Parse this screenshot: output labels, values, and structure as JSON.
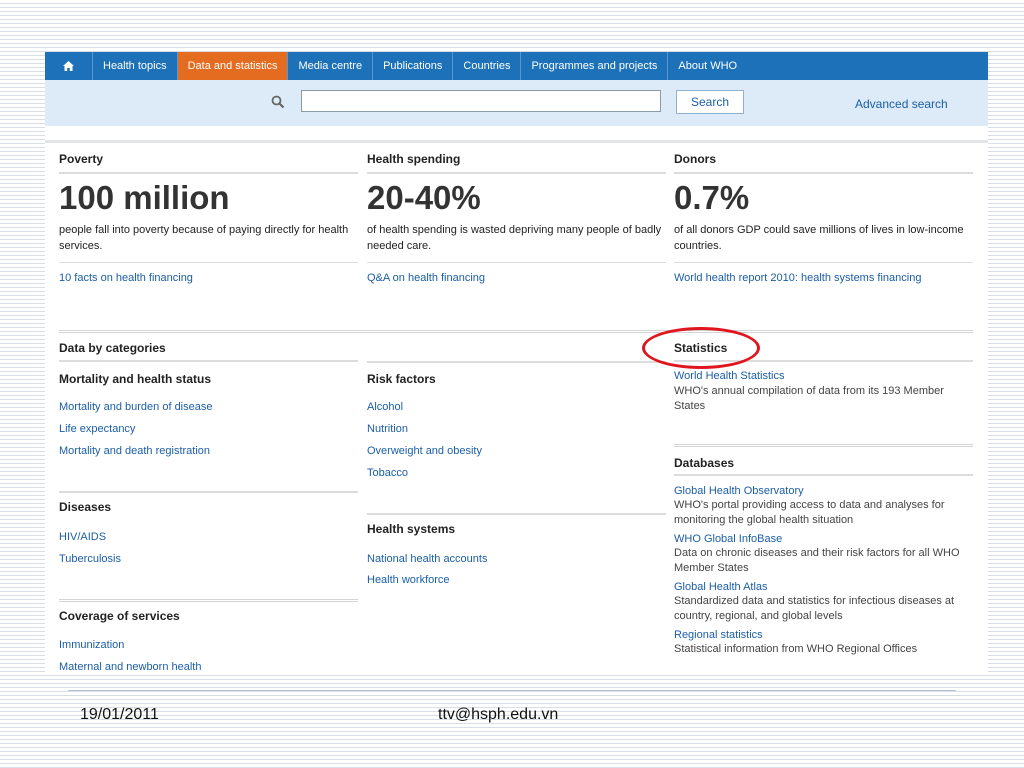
{
  "nav": {
    "home_icon": "home-icon",
    "items": [
      "Health topics",
      "Data and statistics",
      "Media centre",
      "Publications",
      "Countries",
      "Programmes and projects",
      "About WHO"
    ],
    "active_index": 1
  },
  "search": {
    "placeholder": "",
    "button_label": "Search",
    "advanced_label": "Advanced search",
    "icon": "search-icon"
  },
  "facts": [
    {
      "heading": "Poverty",
      "value": "100 million",
      "description": "people fall into poverty because of paying directly for health services.",
      "link": "10 facts on health financing"
    },
    {
      "heading": "Health spending",
      "value": "20-40%",
      "description": "of health spending is wasted depriving many people of badly needed care.",
      "link": "Q&A on health financing"
    },
    {
      "heading": "Donors",
      "value": "0.7%",
      "description": "of all donors GDP could save millions of lives in low-income countries.",
      "link": "World health report 2010: health systems financing"
    }
  ],
  "categories": {
    "heading": "Data by categories",
    "mortality": {
      "heading": "Mortality and health status",
      "links": [
        "Mortality and burden of disease",
        "Life expectancy",
        "Mortality and death registration"
      ]
    },
    "diseases": {
      "heading": "Diseases",
      "links": [
        "HIV/AIDS",
        "Tuberculosis"
      ]
    },
    "coverage": {
      "heading": "Coverage of services",
      "links": [
        "Immunization",
        "Maternal and newborn health"
      ]
    },
    "risk": {
      "heading": "Risk factors",
      "links": [
        "Alcohol",
        "Nutrition",
        "Overweight and obesity",
        "Tobacco"
      ]
    },
    "systems": {
      "heading": "Health systems",
      "links": [
        "National health accounts",
        "Health workforce"
      ]
    }
  },
  "statistics": {
    "heading": "Statistics",
    "title": "World Health Statistics",
    "description": "WHO's annual compilation of data from its 193 Member States"
  },
  "databases": {
    "heading": "Databases",
    "items": [
      {
        "title": "Global Health Observatory",
        "description": "WHO's portal providing access to data and analyses for monitoring the global health situation"
      },
      {
        "title": "WHO Global InfoBase",
        "description": "Data on chronic diseases and their risk factors for all WHO Member States"
      },
      {
        "title": "Global Health Atlas",
        "description": "Standardized data and statistics for infectious diseases at country, regional, and global levels"
      },
      {
        "title": "Regional statistics",
        "description": "Statistical information from WHO Regional Offices"
      }
    ]
  },
  "footer": {
    "date": "19/01/2011",
    "email": "ttv@hsph.edu.vn"
  },
  "colors": {
    "nav_bg": "#1d71b8",
    "nav_active": "#e46c20",
    "search_bg": "#dcebf7",
    "link": "#1b5ea6",
    "annotation": "#e0161e"
  }
}
